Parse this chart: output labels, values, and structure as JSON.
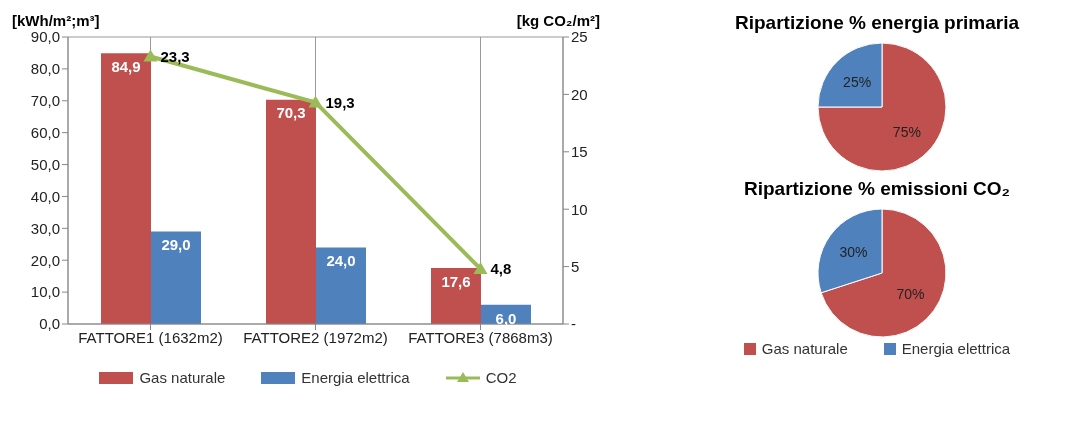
{
  "chart_data": [
    {
      "type": "bar",
      "ylabel": "[kWh/m²;m³]",
      "y2label": "[kg CO₂/m²]",
      "categories": [
        "FATTORE1 (1632m2)",
        "FATTORE2 (1972m2)",
        "FATTORE3 (7868m3)"
      ],
      "series": [
        {
          "name": "Gas naturale",
          "color": "#c0504d",
          "values": [
            84.9,
            70.3,
            17.6
          ],
          "value_labels": [
            "84,9",
            "70,3",
            "17,6"
          ]
        },
        {
          "name": "Energia elettrica",
          "color": "#4f81bd",
          "values": [
            29.0,
            24.0,
            6.0
          ],
          "value_labels": [
            "29,0",
            "24,0",
            "6,0"
          ]
        },
        {
          "name": "CO2",
          "type": "line",
          "axis": "y2",
          "color": "#9bbb59",
          "values": [
            23.3,
            19.3,
            4.8
          ],
          "value_labels": [
            "23,3",
            "19,3",
            "4,8"
          ]
        }
      ],
      "ylim": [
        0,
        90
      ],
      "yticks": [
        {
          "value": 0,
          "label": "0,0"
        },
        {
          "value": 10,
          "label": "10,0"
        },
        {
          "value": 20,
          "label": "20,0"
        },
        {
          "value": 30,
          "label": "30,0"
        },
        {
          "value": 40,
          "label": "40,0"
        },
        {
          "value": 50,
          "label": "50,0"
        },
        {
          "value": 60,
          "label": "60,0"
        },
        {
          "value": 70,
          "label": "70,0"
        },
        {
          "value": 80,
          "label": "80,0"
        },
        {
          "value": 90,
          "label": "90,0"
        }
      ],
      "y2lim": [
        0,
        25
      ],
      "y2ticks": [
        {
          "value": 0,
          "label": "-"
        },
        5,
        10,
        15,
        20,
        25
      ],
      "grid": true,
      "legend": "bottom",
      "marker": "triangle"
    },
    {
      "type": "pie",
      "title": "Ripartizione % energia primaria",
      "categories": [
        null,
        null
      ],
      "values": [
        75,
        25
      ],
      "colors": [
        "#c0504d",
        "#4f81bd"
      ],
      "value_labels": [
        "75%",
        "25%"
      ],
      "legend": false
    },
    {
      "type": "pie",
      "title": "Ripartizione % emissioni CO₂",
      "categories": [
        "Gas naturale",
        "Energia elettrica"
      ],
      "values": [
        70,
        30
      ],
      "colors": [
        "#c0504d",
        "#4f81bd"
      ],
      "value_labels": [
        "70%",
        "30%"
      ],
      "legend": "bottom"
    }
  ]
}
